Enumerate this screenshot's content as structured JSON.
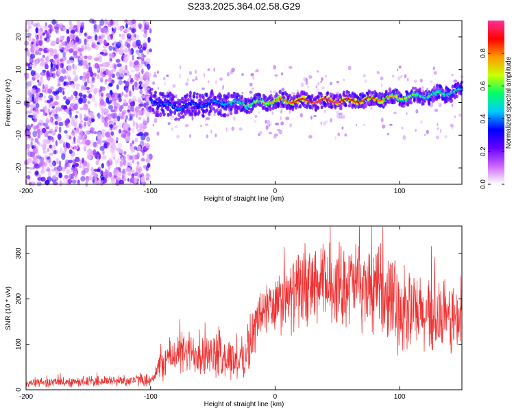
{
  "title": "S233.2025.364.02.58.G29",
  "chart_data": [
    {
      "type": "heatmap",
      "name": "spectrogram",
      "xlabel": "Height of straight line (km)",
      "ylabel": "Frequency (Hz)",
      "xlim": [
        -200,
        150
      ],
      "ylim": [
        -25,
        25
      ],
      "xticks": [
        -200,
        -100,
        0,
        100
      ],
      "yticks": [
        -20,
        -10,
        0,
        10,
        20
      ],
      "xtick_labels": [
        "-200",
        "-100",
        "0",
        "100"
      ],
      "ytick_labels": [
        "-20",
        "-10",
        "0",
        "10",
        "20"
      ],
      "colorbar": {
        "label": "Normalized spectral amplitude",
        "range": [
          0,
          1
        ],
        "ticks": [
          0.0,
          0.2,
          0.4,
          0.6,
          0.8
        ],
        "tick_labels": [
          "0.0",
          "0.2",
          "0.4",
          "0.6",
          "0.8"
        ],
        "colormap": [
          "#ffffff",
          "#cc66ff",
          "#6600ff",
          "#0000ff",
          "#00ccff",
          "#00ff66",
          "#ccff00",
          "#ff9900",
          "#ff0000",
          "#ff3399"
        ]
      },
      "signal_track": {
        "description_x": [
          -100,
          -80,
          -60,
          -40,
          -20,
          0,
          20,
          40,
          60,
          80,
          100,
          120,
          150
        ],
        "frequency_hz": [
          0.5,
          -1.5,
          -0.5,
          0,
          -0.5,
          0.5,
          0.5,
          0.5,
          0.5,
          1,
          1.5,
          2,
          3.5
        ],
        "peak_amplitude": [
          0.35,
          0.4,
          0.35,
          0.45,
          0.6,
          0.75,
          0.9,
          0.95,
          0.9,
          0.85,
          0.7,
          0.55,
          0.5
        ]
      },
      "noise_region_x": [
        -200,
        -100
      ]
    },
    {
      "type": "line",
      "name": "snr",
      "xlabel": "Height of straight line (km)",
      "ylabel": "SNR (10 * v/v)",
      "xlim": [
        -200,
        150
      ],
      "ylim": [
        0,
        360
      ],
      "xticks": [
        -200,
        -100,
        0,
        100
      ],
      "yticks": [
        0,
        100,
        200,
        300
      ],
      "xtick_labels": [
        "-200",
        "-100",
        "0",
        "100"
      ],
      "ytick_labels": [
        "0",
        "100",
        "200",
        "300"
      ],
      "line_color": "#ee3333",
      "envelope": {
        "x": [
          -200,
          -150,
          -100,
          -90,
          -80,
          -60,
          -40,
          -30,
          -20,
          -15,
          -10,
          0,
          20,
          40,
          60,
          80,
          100,
          120,
          150
        ],
        "mean": [
          15,
          18,
          22,
          60,
          80,
          80,
          70,
          60,
          90,
          150,
          175,
          180,
          220,
          230,
          235,
          215,
          180,
          160,
          150
        ],
        "spread": [
          12,
          14,
          16,
          45,
          55,
          60,
          55,
          50,
          55,
          70,
          80,
          80,
          100,
          110,
          110,
          110,
          110,
          100,
          90
        ]
      }
    }
  ]
}
